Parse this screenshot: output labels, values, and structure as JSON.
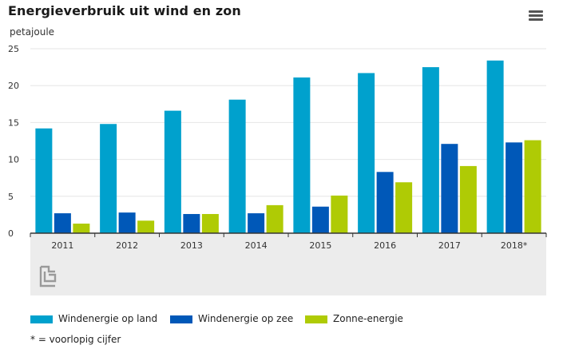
{
  "header": {
    "title": "Energieverbruik uit wind en zon",
    "unit": "petajoule",
    "menu_icon": "hamburger-menu-icon"
  },
  "colors": {
    "wind_land": "#00a1cd",
    "wind_zee": "#0058b8",
    "zon": "#afcb05",
    "grid": "#e6e6e6",
    "axis": "#333333",
    "panel": "#ececec"
  },
  "legend": {
    "items": [
      {
        "label": "Windenergie op land",
        "color": "#00a1cd"
      },
      {
        "label": "Windenergie op zee",
        "color": "#0058b8"
      },
      {
        "label": "Zonne-energie",
        "color": "#afcb05"
      }
    ]
  },
  "footnote": "* = voorlopig cijfer",
  "logo": "cbs-logo-icon",
  "chart_data": {
    "type": "bar",
    "title": "Energieverbruik uit wind en zon",
    "ylabel": "petajoule",
    "xlabel": "",
    "ylim": [
      0,
      25
    ],
    "yticks": [
      0,
      5,
      10,
      15,
      20,
      25
    ],
    "grid": true,
    "legend_position": "bottom",
    "categories": [
      "2011",
      "2012",
      "2013",
      "2014",
      "2015",
      "2016",
      "2017",
      "2018*"
    ],
    "series": [
      {
        "name": "Windenergie op land",
        "color": "#00a1cd",
        "values": [
          14.2,
          14.8,
          16.6,
          18.1,
          21.1,
          21.7,
          22.5,
          23.4
        ]
      },
      {
        "name": "Windenergie op zee",
        "color": "#0058b8",
        "values": [
          2.7,
          2.8,
          2.6,
          2.7,
          3.6,
          8.3,
          12.1,
          12.3
        ]
      },
      {
        "name": "Zonne-energie",
        "color": "#afcb05",
        "values": [
          1.3,
          1.7,
          2.6,
          3.8,
          5.1,
          6.9,
          9.1,
          12.6
        ]
      }
    ]
  }
}
